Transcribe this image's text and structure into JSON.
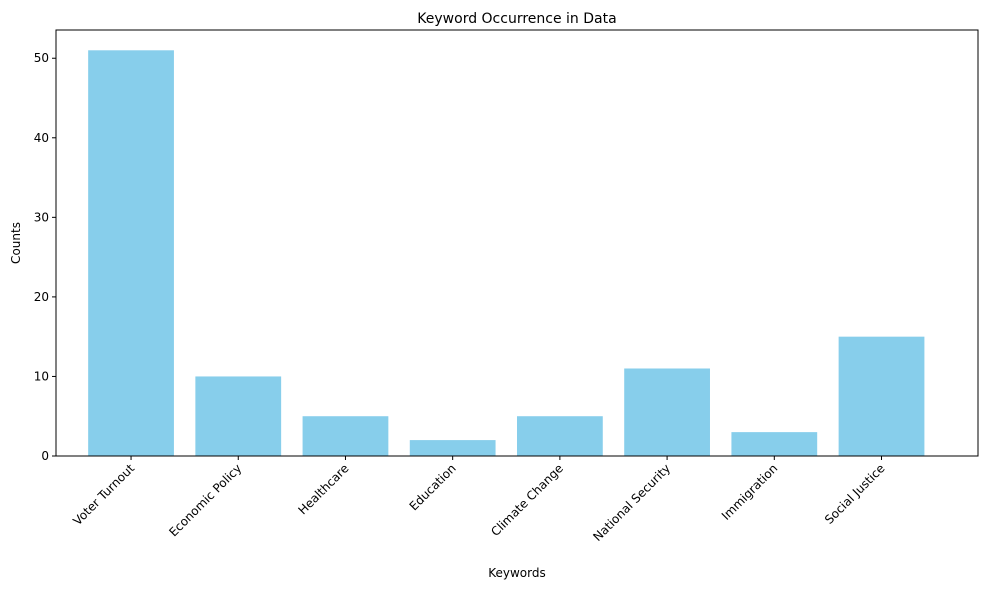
{
  "chart_data": {
    "type": "bar",
    "title": "Keyword Occurrence in Data",
    "xlabel": "Keywords",
    "ylabel": "Counts",
    "categories": [
      "Voter Turnout",
      "Economic Policy",
      "Healthcare",
      "Education",
      "Climate Change",
      "National Security",
      "Immigration",
      "Social Justice"
    ],
    "values": [
      51,
      10,
      5,
      2,
      5,
      11,
      3,
      15
    ],
    "ylim": [
      0,
      53.55
    ],
    "yticks": [
      0,
      10,
      20,
      30,
      40,
      50
    ],
    "bar_color": "#87ceeb",
    "grid": false,
    "legend": "none"
  }
}
